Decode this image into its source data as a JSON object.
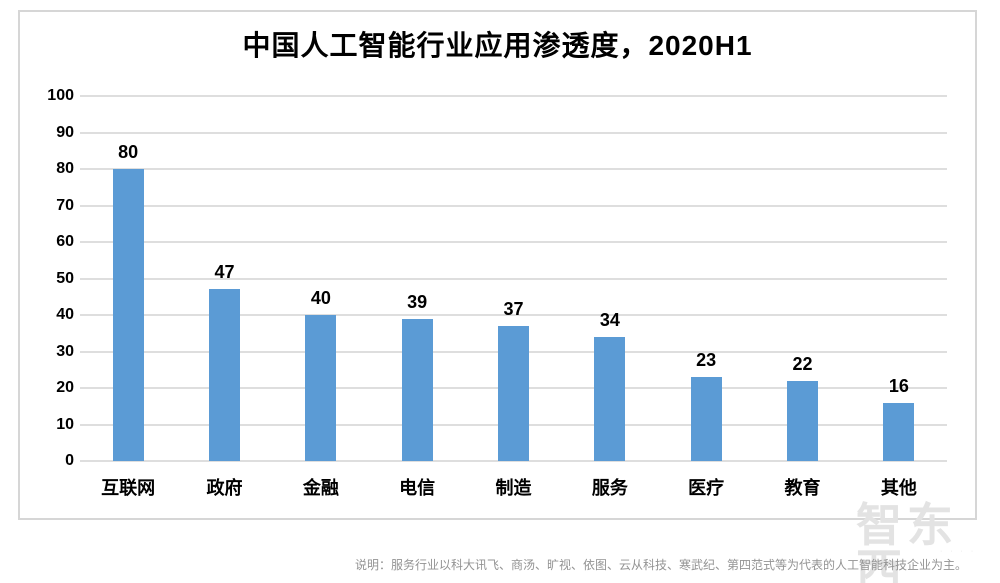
{
  "chart": {
    "title": "中国人工智能行业应用渗透度，2020H1",
    "note": "说明：服务行业以科大讯飞、商汤、旷视、依图、云从科技、寒武纪、第四范式等为代表的人工智能科技企业为主。",
    "watermark": "智东西",
    "colors": {
      "bar": "#5B9BD5",
      "gridline": "#dedede",
      "frame_border": "#d6d6d6",
      "label": "#000000",
      "note": "#939393",
      "watermark": "#e3e3e3"
    }
  },
  "chart_data": {
    "type": "bar",
    "title": "中国人工智能行业应用渗透度，2020H1",
    "categories": [
      "互联网",
      "政府",
      "金融",
      "电信",
      "制造",
      "服务",
      "医疗",
      "教育",
      "其他"
    ],
    "values": [
      80,
      47,
      40,
      39,
      37,
      34,
      23,
      22,
      16
    ],
    "xlabel": "",
    "ylabel": "",
    "ylim": [
      0,
      100
    ],
    "yticks": [
      0,
      10,
      20,
      30,
      40,
      50,
      60,
      70,
      80,
      90,
      100
    ],
    "grid": true,
    "legend": false,
    "data_labels": true,
    "bar_color": "#5B9BD5"
  }
}
